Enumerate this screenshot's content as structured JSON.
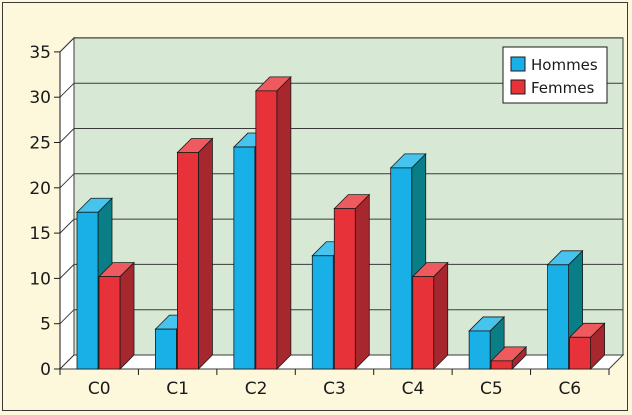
{
  "chart_data": {
    "type": "bar",
    "style": "3d-clustered",
    "categories": [
      "C0",
      "C1",
      "C2",
      "C3",
      "C4",
      "C5",
      "C6"
    ],
    "series": [
      {
        "name": "Hommes",
        "values": [
          17.3,
          4.4,
          24.5,
          12.5,
          22.2,
          4.2,
          11.5
        ]
      },
      {
        "name": "Femmes",
        "values": [
          10.2,
          23.9,
          30.7,
          17.7,
          10.2,
          0.9,
          3.5
        ]
      }
    ],
    "ylim": [
      0,
      35
    ],
    "yticks": [
      0,
      5,
      10,
      15,
      20,
      25,
      30,
      35
    ],
    "grid": true,
    "legend_position": "top-right",
    "colors": {
      "Hommes": {
        "front": "#19b0e8",
        "side": "#0a7e86",
        "top": "#46c4ee"
      },
      "Femmes": {
        "front": "#e8323a",
        "side": "#a7272e",
        "top": "#ee5a5e"
      },
      "plot_back": "#d7e9d4",
      "plot_side": "#ffffff",
      "floor": "#ffffff",
      "gridline": "#3a3a3a",
      "background": "#fdf8dc"
    }
  }
}
